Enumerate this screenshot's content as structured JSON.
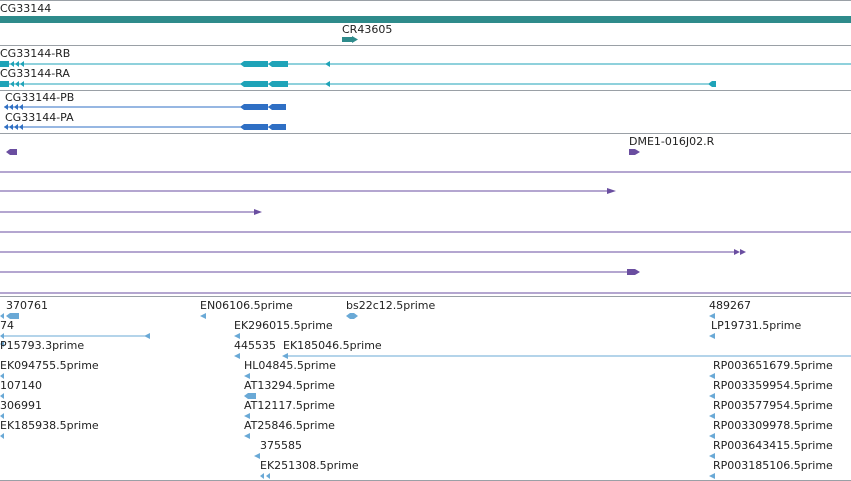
{
  "colors": {
    "gene": "#2e8b8b",
    "transcript_rna": "#1fa3b8",
    "transcript_protein": "#2f6fc4",
    "clone": "#6a4ea0",
    "est": "#6aa9d6",
    "separator": "#9aa0a6"
  },
  "gene_track": {
    "gene_label": "CG33144",
    "ncrna_label": "CR43605"
  },
  "transcripts": [
    {
      "label": "CG33144-RB"
    },
    {
      "label": "CG33144-RA"
    },
    {
      "label": "CG33144-PB"
    },
    {
      "label": "CG33144-PA"
    }
  ],
  "clones": {
    "label": "DME1-016J02.R"
  },
  "ests": {
    "labels": [
      "370761",
      "EN06106.5prime",
      "bs22c12.5prime",
      "489267",
      "74",
      "EK296015.5prime",
      "LP19731.5prime",
      "P15793.3prime",
      "445535",
      "EK185046.5prime",
      "EK094755.5prime",
      "HL04845.5prime",
      "RP003651679.5prime",
      "107140",
      "AT13294.5prime",
      "RP003359954.5prime",
      "306991",
      "AT12117.5prime",
      "RP003577954.5prime",
      "EK185938.5prime",
      "AT25846.5prime",
      "RP003309978.5prime",
      "375585",
      "RP003643415.5prime",
      "EK251308.5prime",
      "RP003185106.5prime"
    ]
  }
}
